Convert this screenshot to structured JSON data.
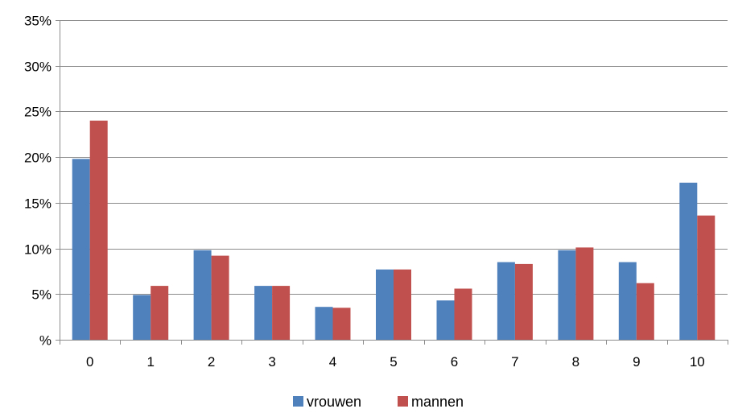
{
  "chart_data": {
    "type": "bar",
    "title": "",
    "xlabel": "",
    "ylabel": "",
    "categories": [
      "0",
      "1",
      "2",
      "3",
      "4",
      "5",
      "6",
      "7",
      "8",
      "9",
      "10"
    ],
    "series": [
      {
        "name": "vrouwen",
        "color": "#4F81BD",
        "values": [
          19.8,
          4.9,
          9.8,
          5.9,
          3.6,
          7.7,
          4.3,
          8.5,
          9.8,
          8.5,
          17.2
        ]
      },
      {
        "name": "mannen",
        "color": "#C0504D",
        "values": [
          24.0,
          5.9,
          9.2,
          5.9,
          3.5,
          7.7,
          5.6,
          8.3,
          10.1,
          6.2,
          13.6
        ]
      }
    ],
    "ylim": [
      0,
      35
    ],
    "yticks": [
      0,
      5,
      10,
      15,
      20,
      25,
      30,
      35
    ],
    "ytick_labels": [
      "%",
      "5%",
      "10%",
      "15%",
      "20%",
      "25%",
      "30%",
      "35%"
    ],
    "grid": true,
    "legend_position": "bottom"
  }
}
